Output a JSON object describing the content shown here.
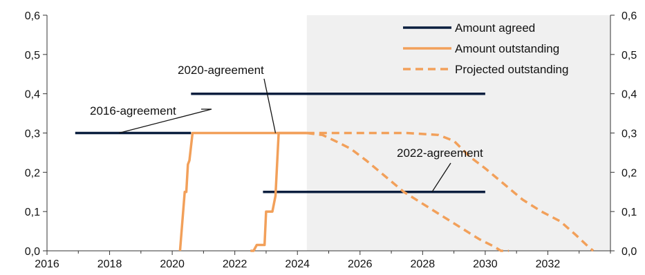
{
  "chart_data": {
    "type": "line",
    "title": "",
    "xlabel": "",
    "ylabel": "",
    "xlim": [
      2016,
      2034
    ],
    "ylim": [
      0,
      0.6
    ],
    "x_ticks": [
      2016,
      2018,
      2020,
      2022,
      2024,
      2026,
      2028,
      2030,
      2032
    ],
    "x_tick_labels": [
      "2016",
      "2018",
      "2020",
      "2022",
      "2024",
      "2026",
      "2028",
      "2030",
      "2032"
    ],
    "y_ticks": [
      0,
      0.1,
      0.2,
      0.3,
      0.4,
      0.5,
      0.6
    ],
    "y_tick_labels": [
      "0,0",
      "0,1",
      "0,2",
      "0,3",
      "0,4",
      "0,5",
      "0,6"
    ],
    "grid": false,
    "projection_shading": {
      "from_x": 2024.3,
      "to_x": 2034,
      "color": "#f0f0f0"
    },
    "legend": {
      "position": "top-right",
      "entries": [
        {
          "name": "Amount agreed",
          "color": "#0b1f3f",
          "style": "solid"
        },
        {
          "name": "Amount outstanding",
          "color": "#f2a05a",
          "style": "solid"
        },
        {
          "name": "Projected outstanding",
          "color": "#f2a05a",
          "style": "dashed"
        }
      ]
    },
    "series": [
      {
        "name": "2016-agreement",
        "kind": "agreed",
        "color": "#0b1f3f",
        "style": "solid",
        "points": [
          [
            2016.9,
            0.3
          ],
          [
            2020.6,
            0.3
          ]
        ]
      },
      {
        "name": "2020-agreement",
        "kind": "agreed",
        "color": "#0b1f3f",
        "style": "solid",
        "points": [
          [
            2020.6,
            0.4
          ],
          [
            2030.0,
            0.4
          ]
        ]
      },
      {
        "name": "2022-agreement",
        "kind": "agreed",
        "color": "#0b1f3f",
        "style": "solid",
        "points": [
          [
            2022.9,
            0.15
          ],
          [
            2030.0,
            0.15
          ]
        ]
      },
      {
        "name": "2016-agreement outstanding",
        "kind": "outstanding",
        "color": "#f2a05a",
        "style": "solid",
        "points": [
          [
            2020.25,
            0.0
          ],
          [
            2020.4,
            0.15
          ],
          [
            2020.45,
            0.15
          ],
          [
            2020.5,
            0.22
          ],
          [
            2020.55,
            0.23
          ],
          [
            2020.65,
            0.3
          ],
          [
            2024.3,
            0.3
          ]
        ]
      },
      {
        "name": "2020/2022-agreement outstanding",
        "kind": "outstanding",
        "color": "#f2a05a",
        "style": "solid",
        "points": [
          [
            2022.5,
            0.0
          ],
          [
            2022.6,
            0.0
          ],
          [
            2022.7,
            0.015
          ],
          [
            2022.95,
            0.015
          ],
          [
            2023.0,
            0.1
          ],
          [
            2023.1,
            0.1
          ],
          [
            2023.2,
            0.1
          ],
          [
            2023.3,
            0.14
          ],
          [
            2023.4,
            0.3
          ],
          [
            2024.3,
            0.3
          ]
        ]
      },
      {
        "name": "Projected outstanding A",
        "kind": "projected",
        "color": "#f2a05a",
        "style": "dashed",
        "points": [
          [
            2024.3,
            0.3
          ],
          [
            2024.8,
            0.295
          ],
          [
            2025.2,
            0.28
          ],
          [
            2025.7,
            0.26
          ],
          [
            2026.2,
            0.23
          ],
          [
            2026.8,
            0.19
          ],
          [
            2027.4,
            0.15
          ],
          [
            2028.0,
            0.12
          ],
          [
            2028.6,
            0.09
          ],
          [
            2029.2,
            0.06
          ],
          [
            2029.8,
            0.03
          ],
          [
            2030.3,
            0.01
          ],
          [
            2030.5,
            0.0
          ],
          [
            2030.75,
            0.0
          ]
        ]
      },
      {
        "name": "Projected outstanding B",
        "kind": "projected",
        "color": "#f2a05a",
        "style": "dashed",
        "points": [
          [
            2024.3,
            0.3
          ],
          [
            2025.5,
            0.3
          ],
          [
            2026.5,
            0.3
          ],
          [
            2027.5,
            0.3
          ],
          [
            2028.5,
            0.295
          ],
          [
            2029.0,
            0.28
          ],
          [
            2029.5,
            0.24
          ],
          [
            2030.0,
            0.21
          ],
          [
            2030.6,
            0.17
          ],
          [
            2031.2,
            0.13
          ],
          [
            2031.8,
            0.1
          ],
          [
            2032.4,
            0.075
          ],
          [
            2032.9,
            0.04
          ],
          [
            2033.3,
            0.01
          ],
          [
            2033.45,
            0.0
          ]
        ]
      }
    ],
    "annotations": [
      {
        "text": "2016-agreement",
        "anchor": [
          2018.3,
          0.3
        ]
      },
      {
        "text": "2020-agreement",
        "anchor": [
          2023.3,
          0.3
        ]
      },
      {
        "text": "2022-agreement",
        "anchor": [
          2028.3,
          0.15
        ]
      }
    ]
  }
}
